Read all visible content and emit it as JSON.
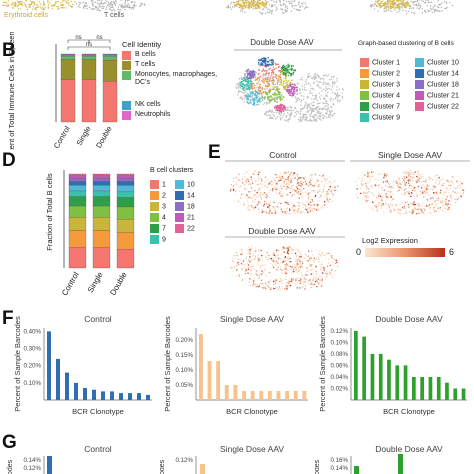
{
  "top": {
    "cluster_labels": [
      "Erythroid cells",
      "T cells"
    ]
  },
  "panelB": {
    "letter": "B",
    "ylabel": "Percent of Total Immune Cells in Spleen",
    "groups": [
      "Control",
      "Single",
      "Double"
    ],
    "ns": [
      "ns",
      "ns",
      "ns"
    ],
    "legend_title": "Cell Identity",
    "legend": [
      {
        "label": "B cells",
        "color": "#f4766f"
      },
      {
        "label": "T cells",
        "color": "#9a8f2d"
      },
      {
        "label": "Monocytes, macrophages, DC's",
        "color": "#62b96d"
      },
      {
        "label": "NK cells",
        "color": "#3fa0c8"
      },
      {
        "label": "Neutrophils",
        "color": "#e067c8"
      }
    ],
    "umap_title": "Double Dose AAV",
    "cluster_legend_title": "Graph-based clustering of B cells",
    "clusters": [
      {
        "label": "Cluster 1",
        "color": "#f4766f"
      },
      {
        "label": "Cluster 10",
        "color": "#4fb9d8"
      },
      {
        "label": "Cluster 2",
        "color": "#f59a3a"
      },
      {
        "label": "Cluster 14",
        "color": "#2f6fb1"
      },
      {
        "label": "Cluster 3",
        "color": "#c9b53a"
      },
      {
        "label": "Cluster 18",
        "color": "#8a6fc6"
      },
      {
        "label": "Cluster 4",
        "color": "#7fbf42"
      },
      {
        "label": "Cluster 21",
        "color": "#c05bb8"
      },
      {
        "label": "Cluster 7",
        "color": "#2e9e47"
      },
      {
        "label": "Cluster 22",
        "color": "#e3609b"
      },
      {
        "label": "Cluster 9",
        "color": "#3dbfad"
      }
    ]
  },
  "panelD": {
    "letter": "D",
    "ylabel": "Fraction of Total B cells",
    "groups": [
      "Control",
      "Single",
      "Double"
    ],
    "legend_title": "B cell clusters",
    "legend": [
      {
        "label": "1",
        "color": "#f4766f"
      },
      {
        "label": "10",
        "color": "#4fb9d8"
      },
      {
        "label": "2",
        "color": "#f59a3a"
      },
      {
        "label": "14",
        "color": "#2f6fb1"
      },
      {
        "label": "3",
        "color": "#c9b53a"
      },
      {
        "label": "18",
        "color": "#8a6fc6"
      },
      {
        "label": "4",
        "color": "#7fbf42"
      },
      {
        "label": "21",
        "color": "#c05bb8"
      },
      {
        "label": "7",
        "color": "#2e9e47"
      },
      {
        "label": "22",
        "color": "#e3609b"
      },
      {
        "label": "9",
        "color": "#3dbfad"
      }
    ]
  },
  "panelE": {
    "letter": "E",
    "titles": [
      "Control",
      "Single Dose AAV",
      "Double Dose AAV"
    ],
    "colorbar_title": "Log2 Expression",
    "colorbar_min": "0",
    "colorbar_max": "6"
  },
  "panelF": {
    "letter": "F",
    "ylabel": "Percent of Sample Barcodes",
    "xlabel": "BCR Clonotype",
    "titles": [
      "Control",
      "Single Dose AAV",
      "Double Dose AAV"
    ]
  },
  "panelG": {
    "letter": "G",
    "titles": [
      "Control",
      "Single Dose AAV",
      "Double Dose AAV"
    ],
    "ylabel": "Codes"
  },
  "chart_data": [
    {
      "type": "bar",
      "stacked": true,
      "categories": [
        "Control",
        "Single",
        "Double"
      ],
      "series": [
        {
          "name": "B cells",
          "values": [
            62,
            62,
            60
          ]
        },
        {
          "name": "T cells",
          "values": [
            30,
            30,
            31
          ]
        },
        {
          "name": "Monocytes, macrophages, DC's",
          "values": [
            5,
            5,
            6
          ]
        },
        {
          "name": "NK cells",
          "values": [
            2,
            2,
            2
          ]
        },
        {
          "name": "Neutrophils",
          "values": [
            1,
            1,
            1
          ]
        }
      ],
      "ylim": [
        0,
        100
      ]
    },
    {
      "type": "bar",
      "stacked": true,
      "categories": [
        "Control",
        "Single",
        "Double"
      ],
      "series": [
        {
          "name": "1",
          "values": [
            0.22,
            0.22,
            0.2
          ]
        },
        {
          "name": "2",
          "values": [
            0.18,
            0.18,
            0.18
          ]
        },
        {
          "name": "3",
          "values": [
            0.14,
            0.14,
            0.14
          ]
        },
        {
          "name": "4",
          "values": [
            0.12,
            0.12,
            0.13
          ]
        },
        {
          "name": "7",
          "values": [
            0.1,
            0.1,
            0.1
          ]
        },
        {
          "name": "9",
          "values": [
            0.06,
            0.06,
            0.06
          ]
        },
        {
          "name": "10",
          "values": [
            0.06,
            0.06,
            0.07
          ]
        },
        {
          "name": "14",
          "values": [
            0.04,
            0.04,
            0.04
          ]
        },
        {
          "name": "18",
          "values": [
            0.03,
            0.03,
            0.03
          ]
        },
        {
          "name": "21",
          "values": [
            0.03,
            0.03,
            0.03
          ]
        },
        {
          "name": "22",
          "values": [
            0.02,
            0.02,
            0.02
          ]
        }
      ],
      "ylim": [
        0,
        1
      ]
    },
    {
      "type": "bar",
      "title": "Control",
      "xlabel": "BCR Clonotype",
      "ylabel": "Percent of Sample Barcodes",
      "color": "#2f6fb1",
      "yticks": [
        "0.10%",
        "0.20%",
        "0.30%",
        "0.40%"
      ],
      "values": [
        0.4,
        0.24,
        0.16,
        0.1,
        0.07,
        0.06,
        0.05,
        0.05,
        0.04,
        0.04,
        0.04,
        0.03
      ],
      "ylim": [
        0,
        0.42
      ]
    },
    {
      "type": "bar",
      "title": "Single Dose AAV",
      "color": "#f6c48a",
      "yticks": [
        "0.05%",
        "0.10%",
        "0.15%",
        "0.20%"
      ],
      "values": [
        0.22,
        0.13,
        0.13,
        0.05,
        0.05,
        0.03,
        0.03,
        0.03,
        0.03,
        0.03,
        0.03,
        0.03,
        0.03
      ],
      "ylim": [
        0,
        0.24
      ]
    },
    {
      "type": "bar",
      "title": "Double Dose AAV",
      "color": "#2ea02e",
      "yticks": [
        "0.02%",
        "0.04%",
        "0.06%",
        "0.08%",
        "0.10%",
        "0.12%"
      ],
      "values": [
        0.12,
        0.11,
        0.08,
        0.08,
        0.07,
        0.06,
        0.06,
        0.04,
        0.04,
        0.04,
        0.04,
        0.03,
        0.02,
        0.02
      ],
      "ylim": [
        0,
        0.125
      ]
    },
    {
      "type": "bar",
      "title": "Control",
      "yticks": [
        "0.12%",
        "0.14%"
      ]
    },
    {
      "type": "bar",
      "title": "Single Dose AAV",
      "yticks": [
        "0.12%"
      ]
    },
    {
      "type": "bar",
      "title": "Double Dose AAV",
      "yticks": [
        "0.14%",
        "0.16%"
      ]
    }
  ]
}
